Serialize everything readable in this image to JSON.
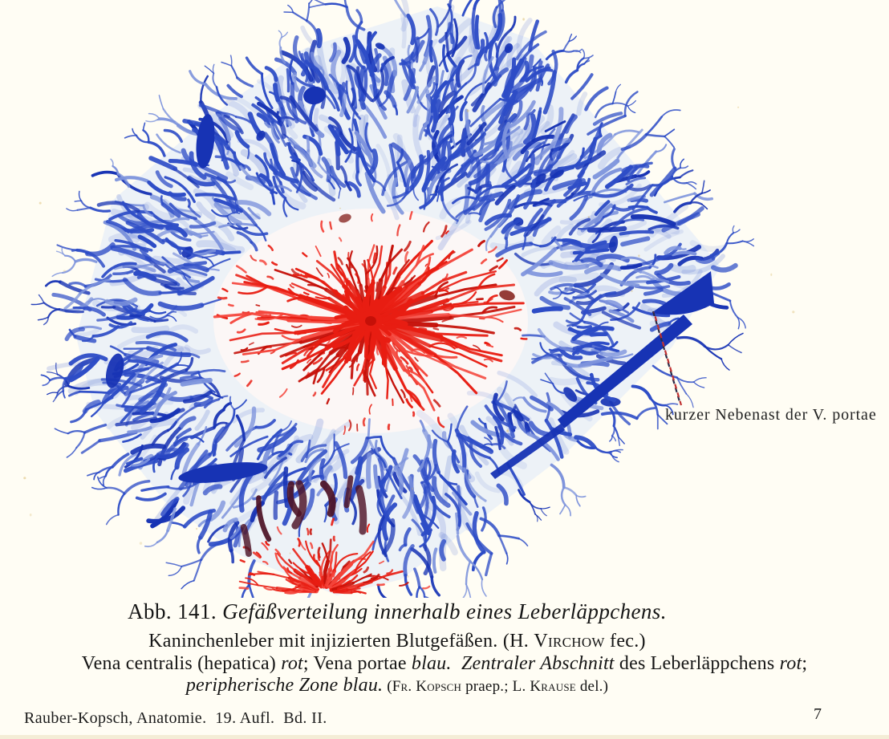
{
  "figure": {
    "annotation_label": "kurzer Nebenast der V. portae",
    "colors": {
      "paper": "#fffdf4",
      "lobule_ground": "#e7edf8",
      "red_ground": "#fdf7f5",
      "portal_blue": "#2d4cc6",
      "portal_blue_light": "#7d93dc",
      "portal_blue_dark": "#1733b4",
      "central_red": "#e81d12",
      "central_red_light": "#f4443a",
      "central_red_dark": "#c51008",
      "maroon": "#4d1326",
      "dark_accent": "#7a0d08",
      "leader_dark": "#2a2a48",
      "leader_red": "#c03030",
      "speckle": "#d8b765"
    }
  },
  "caption": {
    "line1": {
      "prefix": "Abb. 141. ",
      "italic": "Gefäßverteilung innerhalb eines Leberläppchens."
    },
    "line2": {
      "p1": "Kaninchenleber mit injizierten Blutgefäßen. (H. ",
      "sc1": "Virchow",
      "p2": " fec.)"
    },
    "line3": {
      "p1": "Vena centralis (hepatica) ",
      "i1": "rot",
      "p2": "; Vena portae ",
      "i2": "blau.",
      "p3": "  ",
      "i3": "Zentraler Abschnitt",
      "p4": " des Leberläppchens ",
      "i4": "rot",
      "p5": ";"
    },
    "line4": {
      "i1": "peripherische Zone blau.",
      "p1": " (",
      "sc1": "Fr. Kopsch",
      "p2": " praep.; ",
      "sc2": "L. Krause",
      "p3": " del.)"
    }
  },
  "footer": {
    "running_title": "Rauber-Kopsch, Anatomie.  19. Aufl.  Bd. II.",
    "page_number": "7"
  }
}
